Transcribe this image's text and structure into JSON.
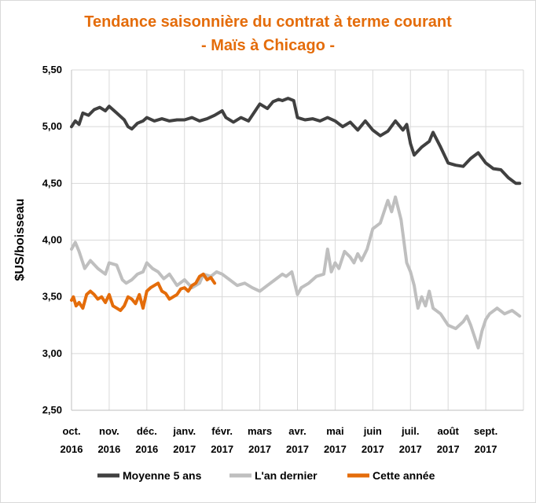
{
  "chart_data": {
    "type": "line",
    "title": "Tendance saisonnière du contrat à terme courant",
    "subtitle": "- Maïs à Chicago -",
    "ylabel": "$US/boisseau",
    "xlabel": "",
    "ylim": [
      2.5,
      5.5
    ],
    "yticks": [
      2.5,
      3.0,
      3.5,
      4.0,
      4.5,
      5.0,
      5.5
    ],
    "ytick_labels": [
      "2,50",
      "3,00",
      "3,50",
      "4,00",
      "4,50",
      "5,00",
      "5,50"
    ],
    "months": [
      {
        "label": "oct.",
        "year": "2016"
      },
      {
        "label": "nov.",
        "year": "2016"
      },
      {
        "label": "déc.",
        "year": "2016"
      },
      {
        "label": "janv.",
        "year": "2017"
      },
      {
        "label": "févr.",
        "year": "2017"
      },
      {
        "label": "mars",
        "year": "2017"
      },
      {
        "label": "avr.",
        "year": "2017"
      },
      {
        "label": "mai",
        "year": "2017"
      },
      {
        "label": "juin",
        "year": "2017"
      },
      {
        "label": "juil.",
        "year": "2017"
      },
      {
        "label": "août",
        "year": "2017"
      },
      {
        "label": "sept.",
        "year": "2017"
      }
    ],
    "grid": true,
    "legend_position": "bottom",
    "series": [
      {
        "name": "Moyenne 5 ans",
        "color": "#404040",
        "x": [
          0,
          0.1,
          0.2,
          0.3,
          0.45,
          0.6,
          0.75,
          0.9,
          1.0,
          1.2,
          1.4,
          1.5,
          1.6,
          1.75,
          1.9,
          2.0,
          2.2,
          2.4,
          2.6,
          2.8,
          3.0,
          3.2,
          3.4,
          3.6,
          3.8,
          4.0,
          4.1,
          4.3,
          4.5,
          4.7,
          4.9,
          5.0,
          5.2,
          5.35,
          5.5,
          5.6,
          5.75,
          5.9,
          6.0,
          6.2,
          6.4,
          6.6,
          6.8,
          7.0,
          7.2,
          7.4,
          7.6,
          7.8,
          8.0,
          8.2,
          8.4,
          8.6,
          8.8,
          8.9,
          9.0,
          9.1,
          9.3,
          9.5,
          9.6,
          9.8,
          10.0,
          10.2,
          10.4,
          10.6,
          10.8,
          11.0,
          11.2,
          11.4,
          11.6,
          11.8,
          11.9
        ],
        "values": [
          5.0,
          5.05,
          5.02,
          5.12,
          5.1,
          5.15,
          5.17,
          5.14,
          5.18,
          5.12,
          5.06,
          5.0,
          4.98,
          5.03,
          5.05,
          5.08,
          5.05,
          5.07,
          5.05,
          5.06,
          5.06,
          5.08,
          5.05,
          5.07,
          5.1,
          5.14,
          5.08,
          5.04,
          5.08,
          5.05,
          5.15,
          5.2,
          5.16,
          5.22,
          5.24,
          5.23,
          5.25,
          5.23,
          5.08,
          5.06,
          5.07,
          5.05,
          5.08,
          5.05,
          5.0,
          5.04,
          4.97,
          5.05,
          4.97,
          4.92,
          4.96,
          5.05,
          4.97,
          5.02,
          4.85,
          4.75,
          4.82,
          4.87,
          4.95,
          4.82,
          4.68,
          4.66,
          4.65,
          4.72,
          4.77,
          4.68,
          4.63,
          4.62,
          4.55,
          4.5,
          4.5
        ]
      },
      {
        "name": "L'an dernier",
        "color": "#bfbfbf",
        "x": [
          0,
          0.1,
          0.2,
          0.35,
          0.5,
          0.7,
          0.9,
          1.0,
          1.2,
          1.35,
          1.45,
          1.6,
          1.75,
          1.9,
          2.0,
          2.15,
          2.3,
          2.45,
          2.6,
          2.8,
          3.0,
          3.2,
          3.4,
          3.5,
          3.7,
          3.85,
          4.0,
          4.2,
          4.4,
          4.6,
          4.8,
          5.0,
          5.2,
          5.4,
          5.6,
          5.7,
          5.85,
          6.0,
          6.1,
          6.3,
          6.5,
          6.7,
          6.8,
          6.9,
          7.0,
          7.1,
          7.25,
          7.4,
          7.5,
          7.6,
          7.7,
          7.85,
          8.0,
          8.2,
          8.4,
          8.5,
          8.6,
          8.75,
          8.9,
          9.0,
          9.1,
          9.2,
          9.3,
          9.4,
          9.5,
          9.6,
          9.8,
          10.0,
          10.2,
          10.4,
          10.5,
          10.6,
          10.8,
          10.9,
          11.0,
          11.1,
          11.3,
          11.5,
          11.7,
          11.9
        ],
        "values": [
          3.92,
          3.98,
          3.9,
          3.75,
          3.82,
          3.75,
          3.7,
          3.8,
          3.78,
          3.65,
          3.62,
          3.65,
          3.7,
          3.72,
          3.8,
          3.75,
          3.72,
          3.66,
          3.7,
          3.6,
          3.65,
          3.58,
          3.62,
          3.7,
          3.68,
          3.72,
          3.7,
          3.65,
          3.6,
          3.62,
          3.58,
          3.55,
          3.6,
          3.65,
          3.7,
          3.68,
          3.72,
          3.52,
          3.58,
          3.62,
          3.68,
          3.7,
          3.92,
          3.72,
          3.8,
          3.75,
          3.9,
          3.85,
          3.8,
          3.88,
          3.82,
          3.92,
          4.1,
          4.15,
          4.35,
          4.25,
          4.38,
          4.18,
          3.8,
          3.72,
          3.6,
          3.4,
          3.5,
          3.42,
          3.55,
          3.4,
          3.35,
          3.25,
          3.22,
          3.28,
          3.33,
          3.25,
          3.05,
          3.2,
          3.3,
          3.35,
          3.4,
          3.35,
          3.38,
          3.33
        ]
      },
      {
        "name": "Cette année",
        "color": "#e46c0a",
        "x": [
          0,
          0.05,
          0.12,
          0.2,
          0.3,
          0.4,
          0.5,
          0.6,
          0.7,
          0.8,
          0.9,
          1.0,
          1.1,
          1.2,
          1.3,
          1.4,
          1.5,
          1.6,
          1.7,
          1.8,
          1.9,
          2.0,
          2.1,
          2.2,
          2.3,
          2.4,
          2.5,
          2.6,
          2.7,
          2.8,
          2.9,
          3.0,
          3.1,
          3.2,
          3.3,
          3.4,
          3.5,
          3.6,
          3.7,
          3.8
        ],
        "values": [
          3.47,
          3.5,
          3.42,
          3.45,
          3.4,
          3.52,
          3.55,
          3.52,
          3.48,
          3.5,
          3.45,
          3.52,
          3.42,
          3.4,
          3.38,
          3.42,
          3.5,
          3.48,
          3.44,
          3.52,
          3.4,
          3.55,
          3.58,
          3.6,
          3.62,
          3.55,
          3.53,
          3.48,
          3.5,
          3.52,
          3.57,
          3.58,
          3.55,
          3.6,
          3.62,
          3.68,
          3.7,
          3.65,
          3.67,
          3.62
        ]
      }
    ]
  }
}
